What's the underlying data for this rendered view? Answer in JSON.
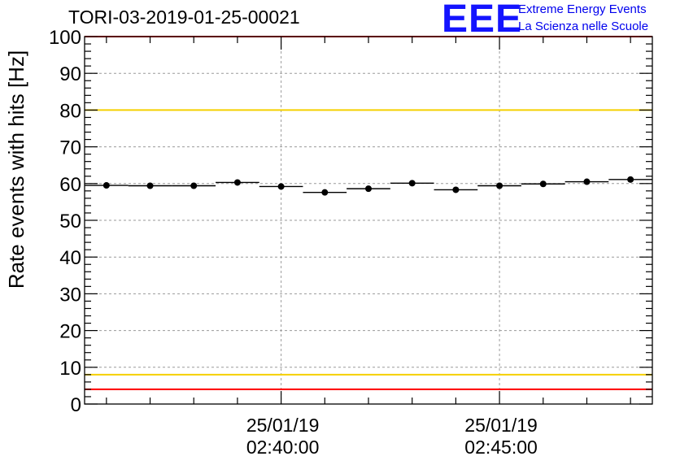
{
  "header": {
    "title": "TORI-03-2019-01-25-00021",
    "logo_text": "EEE",
    "logo_line1": "Extreme Energy Events",
    "logo_line2": "La Scienza nelle Scuole"
  },
  "colors": {
    "limit_red": "#ff0000",
    "limit_yellow": "#f5d000",
    "data": "#000000",
    "grid": "#9a9a9a",
    "logo": "#1414ff"
  },
  "chart_data": {
    "type": "scatter",
    "title": "TORI-03-2019-01-25-00021",
    "ylabel": "Rate events with hits [Hz]",
    "xlabel": "",
    "ylim": [
      0,
      100
    ],
    "yticks": [
      0,
      10,
      20,
      30,
      40,
      50,
      60,
      70,
      80,
      90,
      100
    ],
    "xlim_minutes": [
      -4.5,
      8.5
    ],
    "xticks": [
      {
        "minute": 0,
        "date": "25/01/19",
        "time": "02:40:00"
      },
      {
        "minute": 5,
        "date": "25/01/19",
        "time": "02:45:00"
      }
    ],
    "bin_width_minutes": 1,
    "series": [
      {
        "name": "rate",
        "x_minutes": [
          -4,
          -3,
          -2,
          -1,
          0,
          1,
          2,
          3,
          4,
          5,
          6,
          7,
          8
        ],
        "values": [
          59.5,
          59.4,
          59.4,
          60.3,
          59.2,
          57.6,
          58.6,
          60.1,
          58.3,
          59.4,
          59.9,
          60.5,
          61.1
        ],
        "errors": [
          0.7,
          0.7,
          0.7,
          0.7,
          0.7,
          0.7,
          0.7,
          0.7,
          0.7,
          0.7,
          0.7,
          0.7,
          0.7
        ]
      }
    ],
    "reference_lines": [
      {
        "value": 100,
        "color": "red"
      },
      {
        "value": 80,
        "color": "yellow"
      },
      {
        "value": 8,
        "color": "yellow"
      },
      {
        "value": 4,
        "color": "red"
      }
    ],
    "grid": true
  }
}
